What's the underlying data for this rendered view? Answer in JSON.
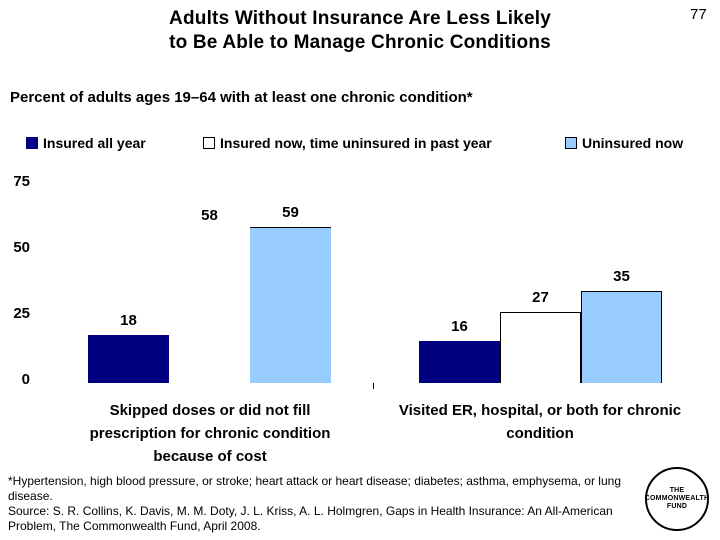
{
  "slide": {
    "page_number": "77",
    "title_line1": "Adults Without Insurance Are Less Likely",
    "title_line2": "to Be Able to Manage Chronic Conditions",
    "subtitle": "Percent of adults ages 19–64 with at least one chronic condition*"
  },
  "chart_data": {
    "type": "bar",
    "title": "Percent of adults ages 19–64 with at least one chronic condition*",
    "categories": [
      "Skipped doses or did not fill prescription for chronic condition because of cost",
      "Visited ER, hospital, or both for chronic condition"
    ],
    "categories_lines": [
      [
        "Skipped doses or did not fill",
        "prescription for chronic condition",
        "because of cost"
      ],
      [
        "Visited ER, hospital, or both for chronic",
        "condition"
      ]
    ],
    "series": [
      {
        "name": "Insured all year",
        "color": "#000080",
        "values": [
          18,
          16
        ]
      },
      {
        "name": "Insured now, time uninsured in past year",
        "color": "#FFFFFF",
        "values": [
          58,
          27
        ]
      },
      {
        "name": "Uninsured now",
        "color": "#99CCFF",
        "values": [
          59,
          35
        ]
      }
    ],
    "ylim": [
      0,
      75
    ],
    "yticks": [
      0,
      25,
      50,
      75
    ],
    "grid": false,
    "legend_position": "top",
    "value_labels": true
  },
  "footer": {
    "lines": [
      "*Hypertension, high blood pressure, or stroke; heart attack or heart disease; diabetes; asthma, emphysema, or lung",
      "disease.",
      "Source: S. R. Collins, K. Davis, M. M. Doty, J. L. Kriss, A. L. Holmgren, Gaps in Health Insurance: An All-American",
      "Problem, The Commonwealth Fund, April 2008."
    ]
  },
  "logo": {
    "lines": [
      "THE",
      "COMMONWEALTH",
      "FUND"
    ]
  }
}
